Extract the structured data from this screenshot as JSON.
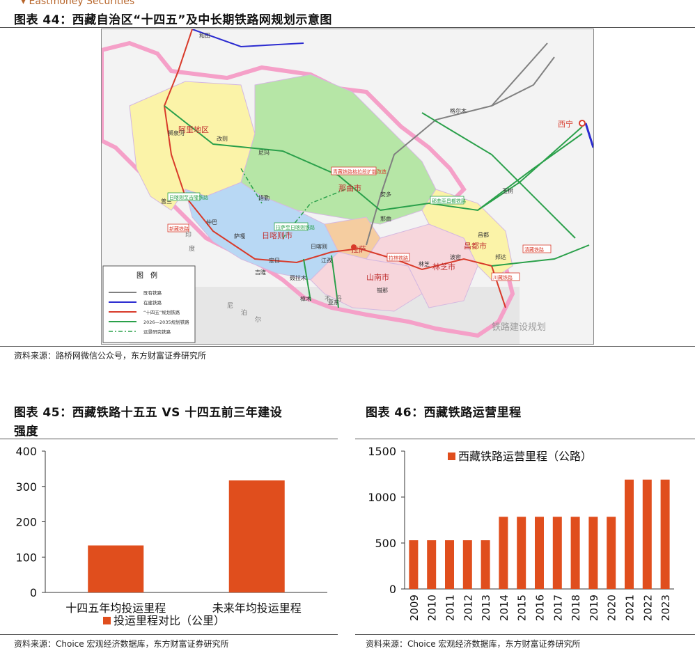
{
  "header": {
    "brand_cut": "Eastmoney Securities"
  },
  "fig44": {
    "title": "图表 44：西藏自治区“十四五”及中长期铁路网规划示意图",
    "source": "资料来源：路桥网微信公众号，东方财富证券研究所",
    "legend": {
      "title": "图　例",
      "items": [
        {
          "label": "既有铁路",
          "color": "#808080"
        },
        {
          "label": "在建铁路",
          "color": "#2b2bd0"
        },
        {
          "label": "“十四五”规划铁路",
          "color": "#d83a2a"
        },
        {
          "label": "2026—2035规划铁路",
          "color": "#2aa04a"
        },
        {
          "label": "远景研究铁路",
          "color": "#2aa04a"
        }
      ]
    },
    "regions": [
      "阿里地区",
      "那曲市",
      "日喀则市",
      "拉萨",
      "山南市",
      "林芝市",
      "昌都市"
    ],
    "cities": [
      "西宁",
      "狮泉河",
      "改则",
      "尼玛",
      "那曲",
      "日喀则",
      "林芝",
      "昌都",
      "安多",
      "亚东",
      "吉隆",
      "普兰",
      "聂拉木",
      "樟木",
      "定日",
      "萨嘎",
      "仲巴",
      "措勤",
      "江孜",
      "错那",
      "波密",
      "邦达",
      "玉树",
      "格尔木",
      "和田"
    ],
    "labels": [
      "日喀则至吉隆铁路",
      "拉萨至日喀则铁路",
      "新藏铁路",
      "川藏铁路",
      "滇藏铁路",
      "青藏铁路格拉段扩能改造",
      "那曲至昌都铁路",
      "拉林铁路"
    ],
    "watermark": "铁路建设规划",
    "neighbor_labels": [
      "印",
      "度",
      "尼",
      "泊",
      "尔",
      "不",
      "丹"
    ]
  },
  "fig45": {
    "title_line1": "图表 45：西藏铁路十五五 VS 十四五前三年建设",
    "title_line2": "强度",
    "source": "资料来源：Choice 宏观经济数据库，东方财富证券研究所",
    "chart_data": {
      "type": "bar",
      "categories": [
        "十四五年均投运里程",
        "未来年均投运里程"
      ],
      "series": [
        {
          "name": "投运里程对比（公里）",
          "values": [
            133,
            317
          ],
          "color": "#e04e1d"
        }
      ],
      "ylim": [
        0,
        400
      ],
      "yticks": [
        0,
        100,
        200,
        300,
        400
      ],
      "legend_position": "bottom"
    }
  },
  "fig46": {
    "title": "图表 46：西藏铁路运营里程",
    "source": "资料来源：Choice 宏观经济数据库，东方财富证券研究所",
    "chart_data": {
      "type": "bar",
      "categories": [
        "2009",
        "2010",
        "2011",
        "2012",
        "2013",
        "2014",
        "2015",
        "2016",
        "2017",
        "2018",
        "2019",
        "2020",
        "2021",
        "2022",
        "2023"
      ],
      "series": [
        {
          "name": "西藏铁路运营里程（公路）",
          "values": [
            530,
            530,
            530,
            530,
            530,
            785,
            785,
            785,
            785,
            785,
            785,
            785,
            1190,
            1190,
            1190
          ],
          "color": "#e04e1d"
        }
      ],
      "ylim": [
        0,
        1500
      ],
      "yticks": [
        0,
        500,
        1000,
        1500
      ],
      "legend_position": "top"
    }
  }
}
